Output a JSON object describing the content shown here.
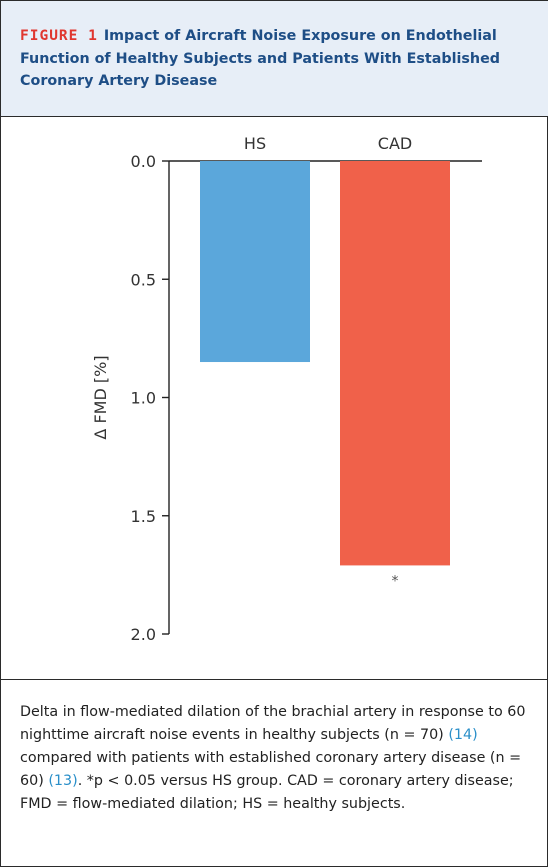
{
  "figure": {
    "label": "FIGURE 1",
    "title": "Impact of Aircraft Noise Exposure on Endothelial Function of Healthy Subjects and Patients With Established Coronary Artery Disease"
  },
  "chart_data": {
    "type": "bar",
    "categories": [
      "HS",
      "CAD"
    ],
    "values": [
      0.85,
      1.71
    ],
    "ylabel": "Δ FMD [%]",
    "ylim": [
      0.0,
      2.0
    ],
    "y_inverted": true,
    "yticks": [
      "0.0",
      "0.5",
      "1.0",
      "1.5",
      "2.0"
    ],
    "significance": [
      "",
      "*"
    ],
    "colors": [
      "#5ba7db",
      "#f0614a"
    ],
    "grid": false,
    "legend": "none"
  },
  "caption": {
    "part1": "Delta in flow-mediated dilation of the brachial artery in response to 60 nighttime aircraft noise events in healthy subjects (n = 70) ",
    "cite1": "(14)",
    "part2": " compared with patients with established coronary artery disease (n = 60) ",
    "cite2": "(13)",
    "part3": ". *p < 0.05 versus HS group. CAD = coronary artery disease; FMD = flow-mediated dilation; HS = healthy subjects."
  }
}
